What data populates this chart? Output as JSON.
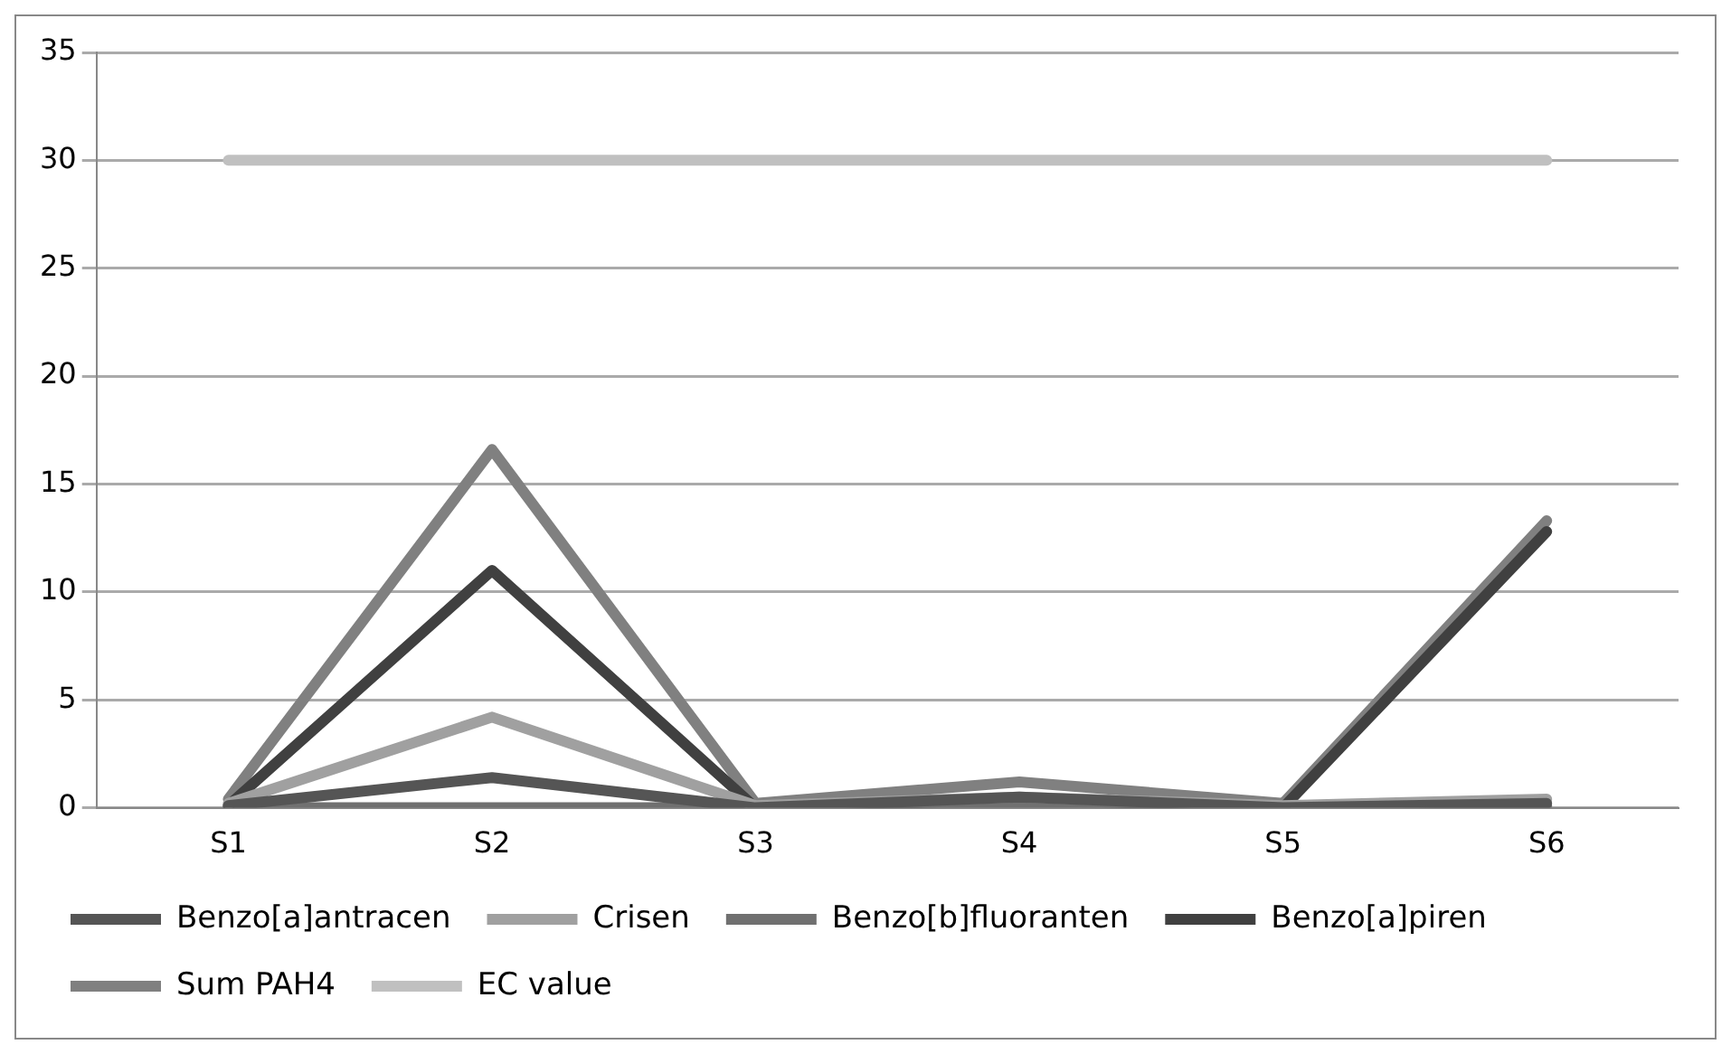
{
  "chart_data": {
    "type": "line",
    "categories": [
      "S1",
      "S2",
      "S3",
      "S4",
      "S5",
      "S6"
    ],
    "series": [
      {
        "name": "Benzo[a]antracen",
        "color": "#555555",
        "values": [
          0.1,
          1.4,
          0,
          0.5,
          0,
          0.2
        ]
      },
      {
        "name": "Crisen",
        "color": "#a0a0a0",
        "values": [
          0.2,
          4.2,
          0.1,
          0.5,
          0.1,
          0.4
        ]
      },
      {
        "name": "Benzo[b]fluoranten",
        "color": "#707070",
        "values": [
          0,
          0,
          0,
          0.1,
          0,
          0.1
        ]
      },
      {
        "name": "Benzo[a]piren",
        "color": "#404040",
        "values": [
          0.1,
          11,
          0,
          0.4,
          0,
          12.8
        ]
      },
      {
        "name": "Sum PAH4",
        "color": "#808080",
        "values": [
          0.4,
          16.6,
          0.2,
          1.2,
          0.2,
          13.3
        ]
      },
      {
        "name": "EC value",
        "color": "#c0c0c0",
        "values": [
          30,
          30,
          30,
          30,
          30,
          30
        ]
      }
    ],
    "ylim": [
      0,
      35
    ],
    "yticks": [
      0,
      5,
      10,
      15,
      20,
      25,
      30,
      35
    ],
    "grid": "y",
    "legend": "bottom",
    "marker": "none",
    "line_style": "solid"
  }
}
